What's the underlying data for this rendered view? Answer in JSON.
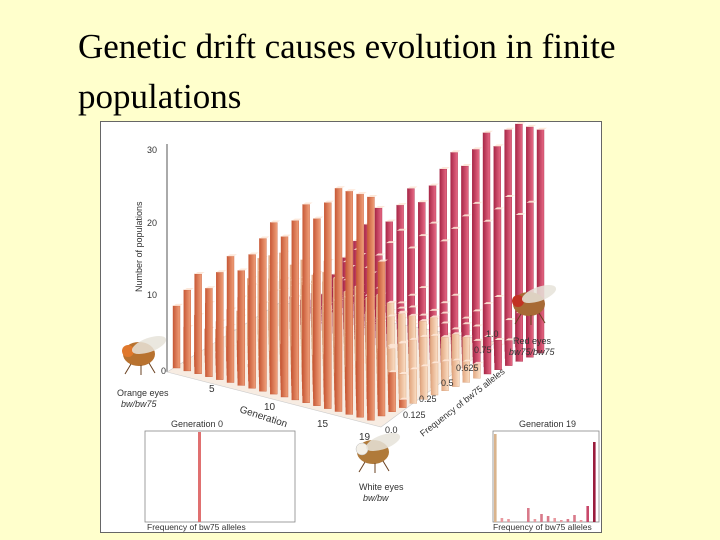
{
  "slide": {
    "title": "Genetic drift causes evolution in finite populations"
  },
  "figure": {
    "y_axis_label": "Number of populations",
    "y_ticks": [
      "30",
      "20",
      "10",
      "0"
    ],
    "generation_axis_label": "Generation",
    "generation_ticks": [
      "5",
      "10",
      "15",
      "19"
    ],
    "frequency_axis_label": "Frequency of bw75 alleles",
    "frequency_ticks": [
      "1.0",
      "0.75",
      "0.625",
      "0.5",
      "0.25",
      "0.125",
      "0.0"
    ],
    "orange_label": "Orange eyes",
    "orange_genotype": "bw/bw75",
    "red_label": "Red eyes",
    "red_genotype": "bw75/bw75",
    "white_label": "White eyes",
    "white_genotype": "bw/bw",
    "gen0_title": "Generation 0",
    "gen0_xlabel": "Frequency of bw75 alleles",
    "gen19_title": "Generation 19",
    "gen19_xlabel": "Frequency of bw75 alleles"
  },
  "colors": {
    "background": "#ffffcc",
    "bar_orange": "#e07a55",
    "bar_peach": "#f2c39b",
    "bar_crimson": "#c83a5a",
    "bar_tan": "#e8b48f"
  }
}
